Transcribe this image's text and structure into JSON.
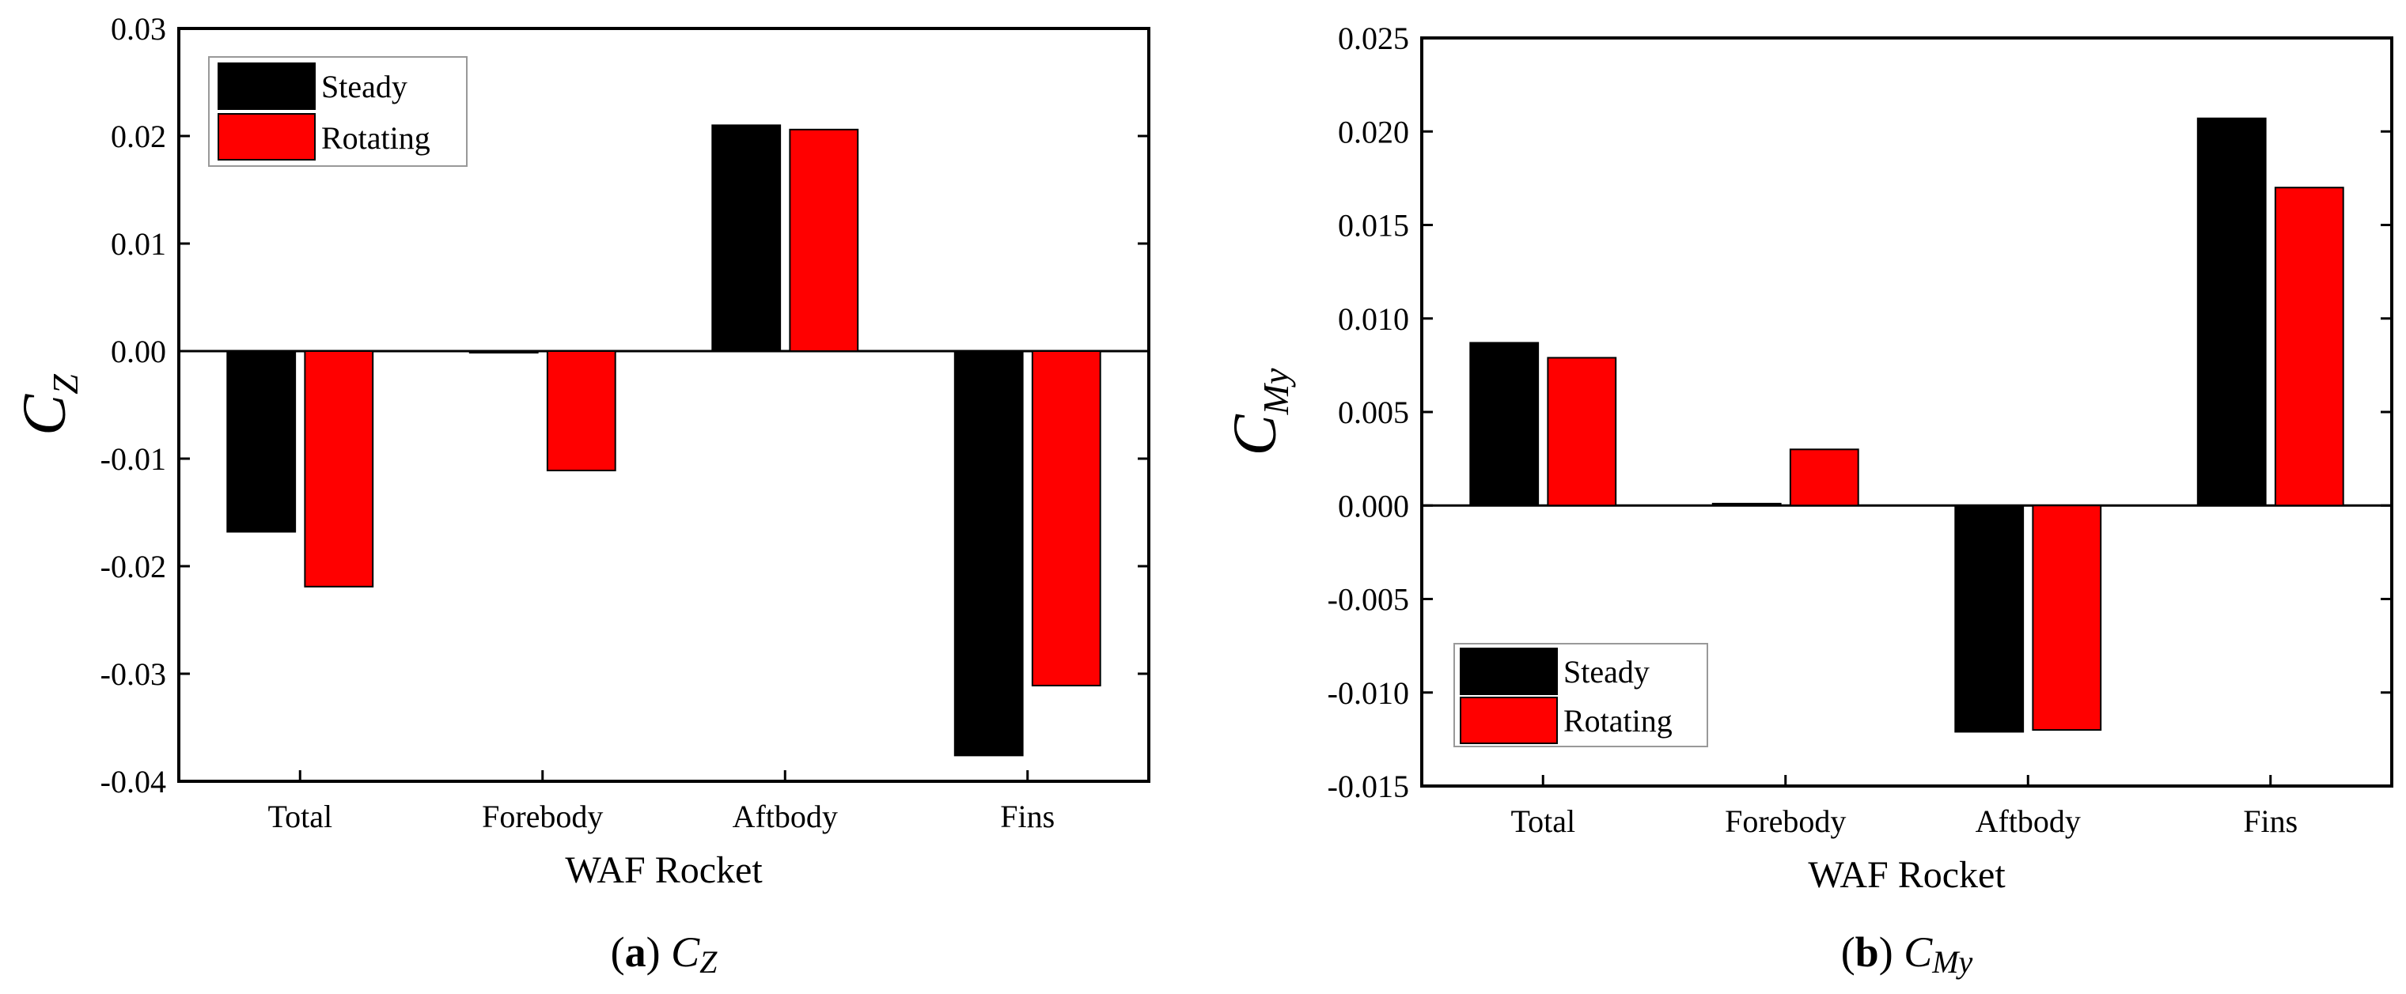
{
  "figure": {
    "colors": {
      "steady": "#000000",
      "rotating": "#ff0000"
    }
  },
  "chart_data": [
    {
      "type": "bar",
      "panel": "a",
      "caption": {
        "letter": "a",
        "symbol": "C",
        "sub": "Z"
      },
      "categories": [
        "Total",
        "Forebody",
        "Aftbody",
        "Fins"
      ],
      "series": [
        {
          "name": "Steady",
          "values": [
            -0.0168,
            0.0,
            0.021,
            -0.0376
          ]
        },
        {
          "name": "Rotating",
          "values": [
            -0.0219,
            -0.0111,
            0.0206,
            -0.0311
          ]
        }
      ],
      "xlabel": "WAF Rocket",
      "ylabel": {
        "symbol": "C",
        "sub": "Z"
      },
      "ylim": [
        -0.04,
        0.03
      ],
      "yticks": [
        "-0.04",
        "-0.03",
        "-0.02",
        "-0.01",
        "0.00",
        "0.01",
        "0.02",
        "0.03"
      ],
      "legend": "top-left",
      "grid": false
    },
    {
      "type": "bar",
      "panel": "b",
      "caption": {
        "letter": "b",
        "symbol": "C",
        "sub": "My"
      },
      "categories": [
        "Total",
        "Forebody",
        "Aftbody",
        "Fins"
      ],
      "series": [
        {
          "name": "Steady",
          "values": [
            0.0087,
            0.0001,
            -0.0121,
            0.0207
          ]
        },
        {
          "name": "Rotating",
          "values": [
            0.0079,
            0.003,
            -0.012,
            0.017
          ]
        }
      ],
      "xlabel": "WAF Rocket",
      "ylabel": {
        "symbol": "C",
        "sub": "My"
      },
      "ylim": [
        -0.015,
        0.025
      ],
      "yticks": [
        "-0.015",
        "-0.010",
        "-0.005",
        "0.000",
        "0.005",
        "0.010",
        "0.015",
        "0.020",
        "0.025"
      ],
      "legend": "bottom-left",
      "grid": false
    }
  ]
}
